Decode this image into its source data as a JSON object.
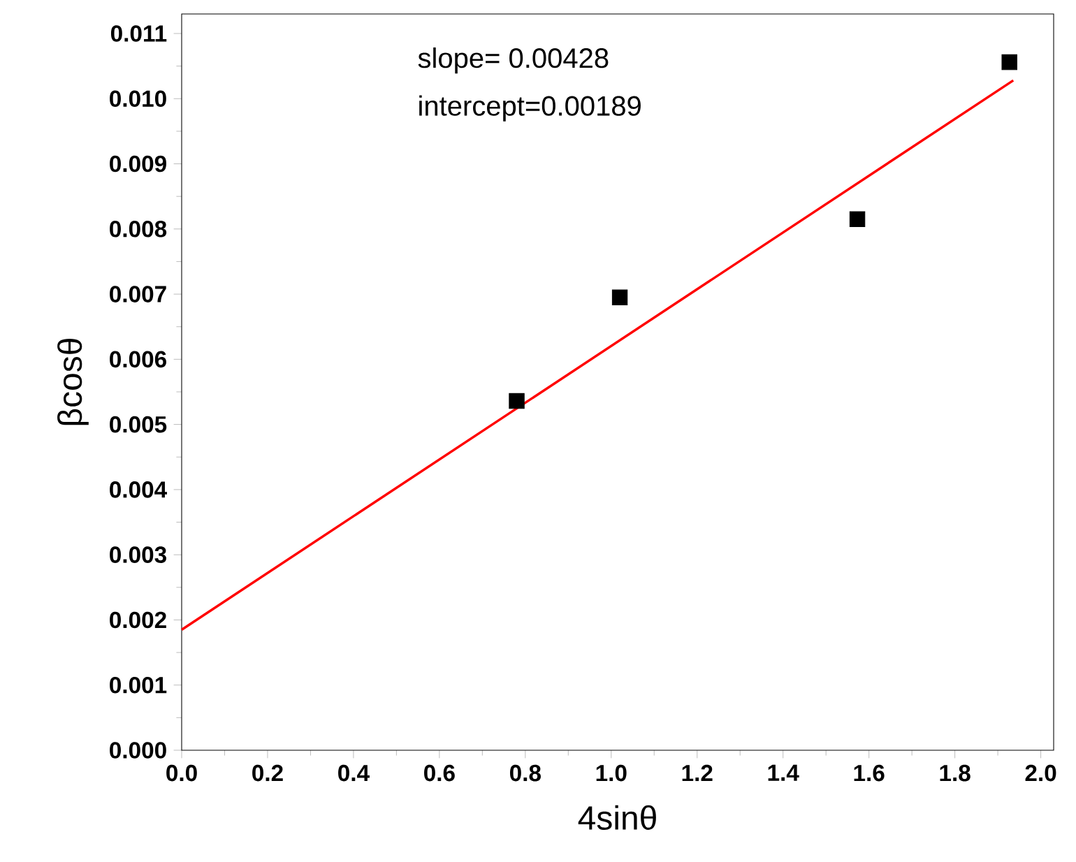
{
  "chart_data": {
    "type": "scatter",
    "xlabel": "4sinθ",
    "ylabel": "βcosθ",
    "grid": false,
    "annotations": [
      "slope= 0.00428",
      "intercept=0.00189"
    ],
    "series": [
      {
        "marker": "square",
        "color": "#000000",
        "x": [
          0.78,
          1.02,
          1.573,
          1.927
        ],
        "values": [
          0.00536,
          0.00695,
          0.00815,
          0.01056
        ]
      },
      {
        "type": "line",
        "marker": "none",
        "color": "#ff0000",
        "x": [
          0,
          1.936
        ],
        "values": [
          0.00185,
          0.01028
        ]
      }
    ],
    "xlim": [
      0,
      2.03
    ],
    "ylim": [
      0,
      0.0113
    ],
    "xticks": [
      {
        "value": 0,
        "label": "0.0"
      },
      {
        "value": 0.2,
        "label": "0.2"
      },
      {
        "value": 0.4,
        "label": "0.4"
      },
      {
        "value": 0.6,
        "label": "0.6"
      },
      {
        "value": 0.8,
        "label": "0.8"
      },
      {
        "value": 1.0,
        "label": "1.0"
      },
      {
        "value": 1.2,
        "label": "1.2"
      },
      {
        "value": 1.4,
        "label": "1.4"
      },
      {
        "value": 1.6,
        "label": "1.6"
      },
      {
        "value": 1.8,
        "label": "1.8"
      },
      {
        "value": 2.0,
        "label": "2.0"
      }
    ],
    "yticks": [
      {
        "value": 0,
        "label": "0.000"
      },
      {
        "value": 0.001,
        "label": "0.001"
      },
      {
        "value": 0.002,
        "label": "0.002"
      },
      {
        "value": 0.003,
        "label": "0.003"
      },
      {
        "value": 0.004,
        "label": "0.004"
      },
      {
        "value": 0.005,
        "label": "0.005"
      },
      {
        "value": 0.006,
        "label": "0.006"
      },
      {
        "value": 0.007,
        "label": "0.007"
      },
      {
        "value": 0.008,
        "label": "0.008"
      },
      {
        "value": 0.009,
        "label": "0.009"
      },
      {
        "value": 0.01,
        "label": "0.010"
      },
      {
        "value": 0.011,
        "label": "0.011"
      }
    ]
  }
}
